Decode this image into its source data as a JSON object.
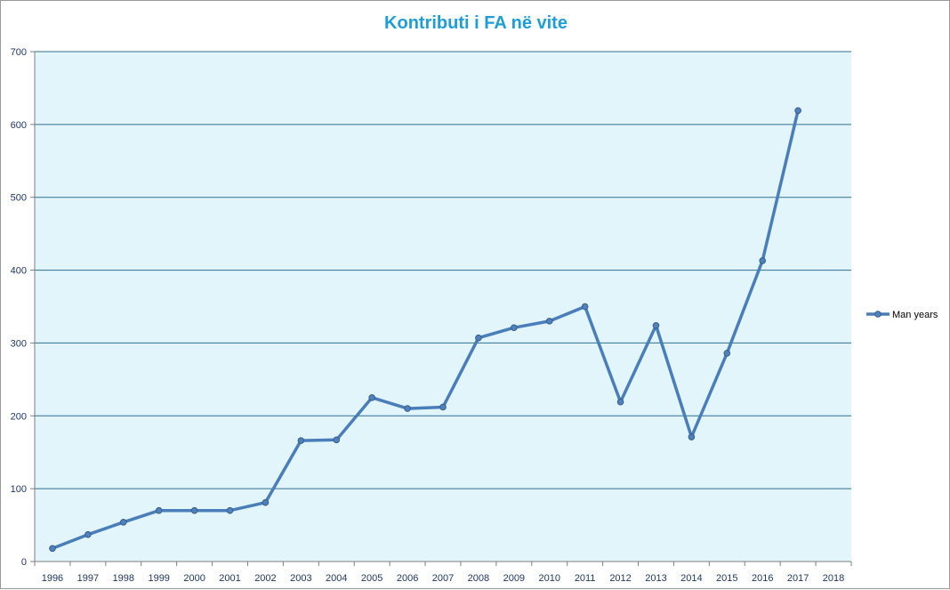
{
  "chart_data": {
    "type": "line",
    "title": "Kontributi  i FA në vite",
    "xlabel": "",
    "ylabel": "",
    "categories": [
      "1996",
      "1997",
      "1998",
      "1999",
      "2000",
      "2001",
      "2002",
      "2003",
      "2004",
      "2005",
      "2006",
      "2007",
      "2008",
      "2009",
      "2010",
      "2011",
      "2012",
      "2013",
      "2014",
      "2015",
      "2016",
      "2017",
      "2018"
    ],
    "series": [
      {
        "name": "Man years",
        "values": [
          18,
          37,
          54,
          70,
          70,
          70,
          81,
          166,
          167,
          225,
          210,
          212,
          307,
          321,
          330,
          350,
          219,
          324,
          171,
          286,
          413,
          619,
          null
        ]
      }
    ],
    "ylim": [
      0,
      700
    ],
    "yticks": [
      0,
      100,
      200,
      300,
      400,
      500,
      600,
      700
    ],
    "grid": true,
    "legend_position": "right",
    "colors": {
      "title": "#1e9ed6",
      "plot_background": "#e2f5fb",
      "gridline": "#2f6f8f",
      "axis": "#7f7f7f",
      "tick_label": "#1f3864",
      "series_line": "#4a7ebb",
      "marker_fill": "#4f81bd",
      "marker_stroke": "#385d8a"
    }
  }
}
